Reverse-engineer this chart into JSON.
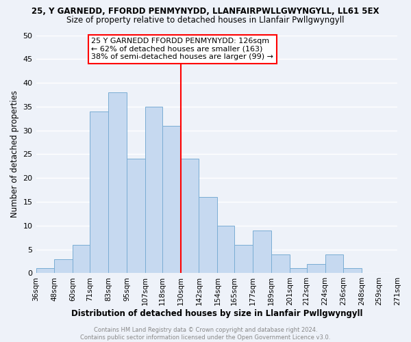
{
  "title_line1": "25, Y GARNEDD, FFORDD PENMYNYDD, LLANFAIRPWLLGWYNGYLL, LL61 5EX",
  "title_line2": "Size of property relative to detached houses in Llanfair Pwllgwyngyll",
  "xlabel": "Distribution of detached houses by size in Llanfair Pwllgwyngyll",
  "ylabel": "Number of detached properties",
  "bin_labels": [
    "36sqm",
    "48sqm",
    "60sqm",
    "71sqm",
    "83sqm",
    "95sqm",
    "107sqm",
    "118sqm",
    "130sqm",
    "142sqm",
    "154sqm",
    "165sqm",
    "177sqm",
    "189sqm",
    "201sqm",
    "212sqm",
    "224sqm",
    "236sqm",
    "248sqm",
    "259sqm",
    "271sqm"
  ],
  "bin_edges": [
    36,
    48,
    60,
    71,
    83,
    95,
    107,
    118,
    130,
    142,
    154,
    165,
    177,
    189,
    201,
    212,
    224,
    236,
    248,
    259,
    271
  ],
  "counts": [
    1,
    3,
    6,
    34,
    38,
    24,
    35,
    31,
    24,
    16,
    10,
    6,
    9,
    4,
    1,
    2,
    4,
    1,
    0,
    0
  ],
  "bar_color": "#c6d9f0",
  "bar_edge_color": "#7aadd4",
  "vline_x": 130,
  "vline_color": "red",
  "annotation_text": "25 Y GARNEDD FFORDD PENMYNYDD: 126sqm\n← 62% of detached houses are smaller (163)\n38% of semi-detached houses are larger (99) →",
  "annotation_box_color": "white",
  "annotation_box_edge_color": "red",
  "ylim": [
    0,
    50
  ],
  "yticks": [
    0,
    5,
    10,
    15,
    20,
    25,
    30,
    35,
    40,
    45,
    50
  ],
  "footer_text": "Contains HM Land Registry data © Crown copyright and database right 2024.\nContains public sector information licensed under the Open Government Licence v3.0.",
  "background_color": "#eef2f9",
  "grid_color": "white"
}
